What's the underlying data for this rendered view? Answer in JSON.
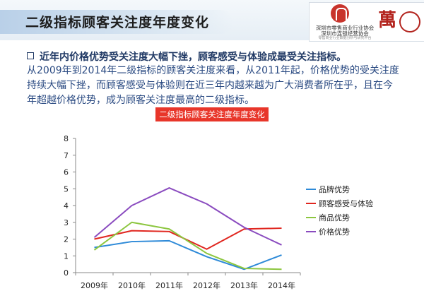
{
  "page": {
    "title": "二级指标顾客关注度年度变化",
    "logo": {
      "association_lines": [
        "深圳市零售商业行业协会",
        "深圳市连锁经营协会",
        "零售商业行业数据分析与研究平台"
      ],
      "brand_char": "萬"
    },
    "headline": "近年内价格优势受关注度大幅下挫，顾客感受与体验成最受关注指标。",
    "body": [
      "从2009年到2014年二级指标的顾客关注度来看，从2011年起，价格优势的受关注度",
      "持续大幅下挫，而顾客感受与体验则在近三年内越来越为广大消费者所在乎，且在今",
      "年超越价格优势，成为顾客关注度最高的二级指标。"
    ]
  },
  "chart_data": {
    "type": "line",
    "title": "二级指标顾客关注度年度变化",
    "categories": [
      "2009年",
      "2010年",
      "2011年",
      "2012年",
      "2013年",
      "2014年"
    ],
    "ylim": [
      0,
      8
    ],
    "yticks": [
      0,
      1,
      2,
      3,
      4,
      5,
      6,
      7,
      8
    ],
    "grid": false,
    "legend_position": "right",
    "series": [
      {
        "name": "品牌优势",
        "color": "#2e8ad8",
        "values": [
          1.5,
          1.85,
          1.9,
          0.95,
          0.2,
          1.05
        ]
      },
      {
        "name": "顾客感受与体验",
        "color": "#e0261f",
        "values": [
          2.0,
          2.5,
          2.45,
          1.4,
          2.6,
          2.65
        ]
      },
      {
        "name": "商品优势",
        "color": "#8cc63f",
        "values": [
          1.35,
          3.0,
          2.6,
          1.15,
          0.25,
          0.2
        ]
      },
      {
        "name": "价格优势",
        "color": "#8a4bbf",
        "values": [
          2.1,
          4.0,
          5.05,
          4.1,
          2.7,
          1.65
        ]
      }
    ]
  }
}
